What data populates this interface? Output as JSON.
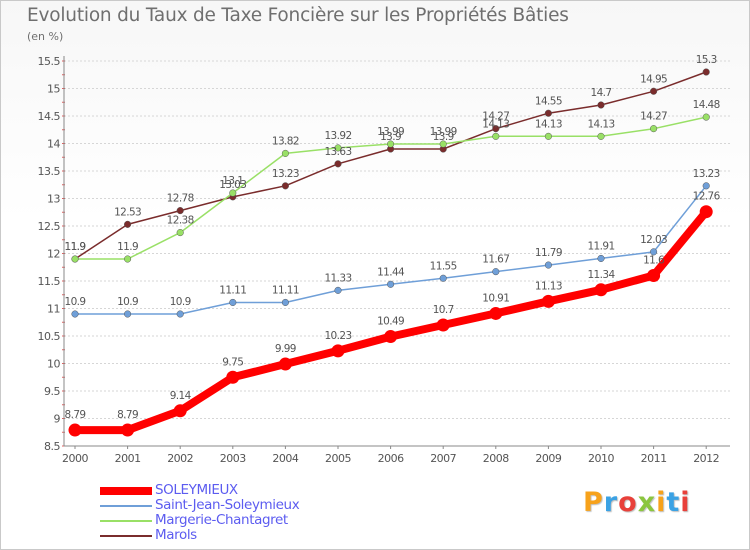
{
  "header": {
    "title": "Evolution du Taux de Taxe Foncière sur les Propriétés Bâties",
    "unit": "(en %)"
  },
  "brand": {
    "logo_text": "Proxiti",
    "letter_colors": [
      "#f7a21b",
      "#3ba2e4",
      "#e8403a",
      "#8bc63e",
      "#f7a21b",
      "#3ba2e4",
      "#e8403a"
    ]
  },
  "chart_data": {
    "type": "line",
    "title": "Evolution du Taux de Taxe Foncière sur les Propriétés Bâties",
    "ylabel": "(en %)",
    "x": [
      "2000",
      "2001",
      "2002",
      "2003",
      "2004",
      "2005",
      "2006",
      "2007",
      "2008",
      "2009",
      "2010",
      "2011",
      "2012"
    ],
    "ylim": [
      8.5,
      15.5
    ],
    "yticks": [
      8.5,
      9,
      9.5,
      10,
      10.5,
      11,
      11.5,
      12,
      12.5,
      13,
      13.5,
      14,
      14.5,
      15,
      15.5
    ],
    "grid": "horizontal",
    "legend_position": "bottom-left",
    "series": [
      {
        "name": "SOLEYMIEUX",
        "color": "#ff0000",
        "values": [
          8.79,
          8.79,
          9.14,
          9.75,
          9.99,
          10.23,
          10.49,
          10.7,
          10.91,
          11.13,
          11.34,
          11.6,
          12.76
        ],
        "labels": [
          "8.79",
          "8.79",
          "9.14",
          "9.75",
          "9.99",
          "10.23",
          "10.49",
          "10.7",
          "10.91",
          "11.13",
          "11.34",
          "11.6",
          "12.76"
        ]
      },
      {
        "name": "Saint-Jean-Soleymieux",
        "color": "#6f9fd8",
        "values": [
          10.9,
          10.9,
          10.9,
          11.11,
          11.11,
          11.33,
          11.44,
          11.55,
          11.67,
          11.79,
          11.91,
          12.03,
          13.23
        ],
        "labels": [
          "10.9",
          "10.9",
          "10.9",
          "11.11",
          "11.11",
          "11.33",
          "11.44",
          "11.55",
          "11.67",
          "11.79",
          "11.91",
          "12.03",
          "13.23"
        ]
      },
      {
        "name": "Margerie-Chantagret",
        "color": "#99e066",
        "values": [
          11.9,
          11.9,
          12.38,
          13.1,
          13.82,
          13.92,
          13.99,
          13.99,
          14.13,
          14.13,
          14.13,
          14.27,
          14.48
        ],
        "labels": [
          "11.9",
          "11.9",
          "12.38",
          "13.1",
          "13.82",
          "13.92",
          "13.99",
          "13.99",
          "14.13",
          "14.13",
          "14.13",
          "14.27",
          "14.48"
        ]
      },
      {
        "name": "Marols",
        "color": "#7a2c2c",
        "values": [
          11.9,
          12.53,
          12.78,
          13.03,
          13.23,
          13.63,
          13.9,
          13.9,
          14.27,
          14.55,
          14.7,
          14.95,
          15.3
        ],
        "labels": [
          "11.9",
          "12.53",
          "12.78",
          "13.03",
          "13.23",
          "13.63",
          "13.9",
          "13.9",
          "14.27",
          "14.55",
          "14.7",
          "14.95",
          "15.3"
        ]
      }
    ]
  }
}
